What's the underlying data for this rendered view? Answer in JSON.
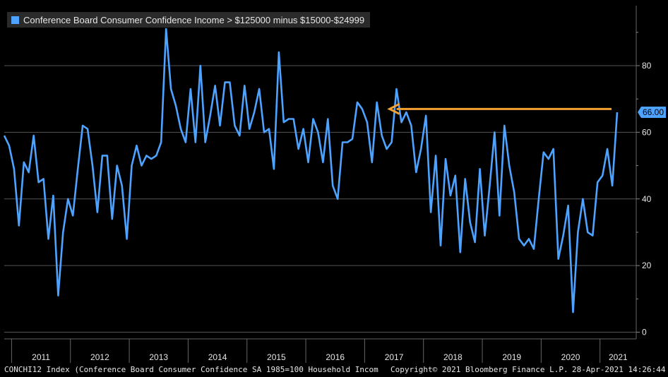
{
  "legend": {
    "label": "Conference Board Consumer Confidence Income > $125000 minus $15000-$24999",
    "color": "#4da3ff"
  },
  "footer": {
    "left": "CONCHI12 Index (Conference Board Consumer Confidence SA 1985=100 Household Incom",
    "copyright": "Copyright© 2021 Bloomberg Finance L.P.",
    "timestamp": "28-Apr-2021 14:26:44"
  },
  "last_value_label": "66.00",
  "colors": {
    "line": "#4da3ff",
    "arrow": "#f5a033",
    "grid": "#555555",
    "background": "#000000"
  },
  "chart_data": {
    "type": "line",
    "x_start": "2010-11",
    "frequency": "monthly",
    "x_tick_labels": [
      "2011",
      "2012",
      "2013",
      "2014",
      "2015",
      "2016",
      "2017",
      "2018",
      "2019",
      "2020",
      "2021"
    ],
    "y_ticks": [
      0,
      20,
      40,
      60,
      80
    ],
    "ylim": [
      -2,
      98
    ],
    "grid": true,
    "axis_side": "right",
    "series": [
      {
        "values": [
          59,
          56,
          49,
          32,
          51,
          48,
          59,
          45,
          46,
          28,
          41,
          11,
          30,
          40,
          35,
          49,
          62,
          61,
          50,
          36,
          53,
          53,
          34,
          50,
          44,
          28,
          50,
          56,
          50,
          53,
          52,
          53,
          57,
          91,
          73,
          68,
          61,
          57,
          73,
          57,
          80,
          57,
          65,
          74,
          62,
          75,
          75,
          62,
          59,
          74,
          61,
          66,
          73,
          60,
          61,
          49,
          84,
          63,
          64,
          64,
          55,
          61,
          51,
          64,
          60,
          51,
          64,
          44,
          40,
          57,
          57,
          58,
          69,
          67,
          63,
          51,
          69,
          59,
          55,
          57,
          73,
          63,
          66,
          62,
          48,
          55,
          65,
          36,
          53,
          26,
          52,
          41,
          47,
          24,
          46,
          33,
          27,
          49,
          29,
          44,
          60,
          35,
          62,
          50,
          42,
          28,
          26,
          28,
          25,
          40,
          54,
          52,
          55,
          22,
          29,
          38,
          6,
          30,
          40,
          30,
          29,
          45,
          47,
          55,
          44,
          66
        ]
      }
    ],
    "annotations": [
      {
        "type": "arrow",
        "from": "2021-04",
        "to": "2017-05",
        "y": 67
      }
    ]
  }
}
